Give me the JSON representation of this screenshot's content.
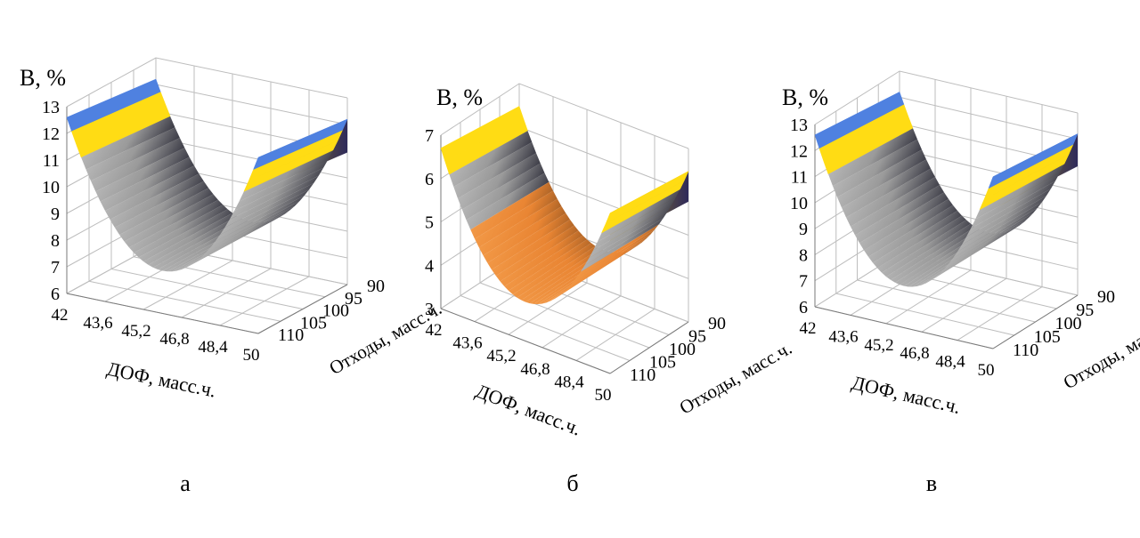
{
  "figure": {
    "panel_labels": [
      "а",
      "б",
      "в"
    ]
  },
  "colors": {
    "blue": "#4f81e0",
    "yellow": "#ffdc14",
    "gray": "#b4b4b4",
    "orange": "#f59a46",
    "gold": "#d4b020",
    "grid": "#bdbdbd"
  },
  "chart_data": [
    {
      "type": "surface",
      "panel": "а",
      "zlabel": "В, %",
      "xlabel": "ДОФ, масс.ч.",
      "ylabel": "Отходы, масс.ч.",
      "x_ticks": [
        "42",
        "43,6",
        "45,2",
        "46,8",
        "48,4",
        "50"
      ],
      "y_ticks": [
        "90",
        "95",
        "100",
        "105",
        "110"
      ],
      "z_ticks": [
        "6",
        "7",
        "8",
        "9",
        "10",
        "11",
        "12",
        "13"
      ],
      "zlim": [
        6,
        13
      ],
      "z_min": 7.6,
      "z_max": 12.6,
      "bands": [
        {
          "from": 6,
          "to": 11,
          "color": "gray"
        },
        {
          "from": 11,
          "to": 12,
          "color": "yellow"
        },
        {
          "from": 12,
          "to": 13,
          "color": "blue"
        }
      ]
    },
    {
      "type": "surface",
      "panel": "б",
      "zlabel": "В, %",
      "xlabel": "ДОФ, масс.ч.",
      "ylabel": "Отходы, масс.ч.",
      "x_ticks": [
        "42",
        "43,6",
        "45,2",
        "46,8",
        "48,4",
        "50"
      ],
      "y_ticks": [
        "90",
        "95",
        "100",
        "105",
        "110"
      ],
      "z_ticks": [
        "3",
        "4",
        "5",
        "6",
        "7"
      ],
      "zlim": [
        3,
        7
      ],
      "z_min": 3.9,
      "z_max": 6.7,
      "bands": [
        {
          "from": 3,
          "to": 5,
          "color": "orange"
        },
        {
          "from": 5,
          "to": 6,
          "color": "gray"
        },
        {
          "from": 6,
          "to": 7,
          "color": "yellow"
        }
      ]
    },
    {
      "type": "surface",
      "panel": "в",
      "zlabel": "В, %",
      "xlabel": "ДОФ, масс.ч.",
      "ylabel": "Отходы, масс.ч.",
      "x_ticks": [
        "42",
        "43,6",
        "45,2",
        "46,8",
        "48,4",
        "50"
      ],
      "y_ticks": [
        "90",
        "95",
        "100",
        "105",
        "110"
      ],
      "z_ticks": [
        "6",
        "7",
        "8",
        "9",
        "10",
        "11",
        "12",
        "13"
      ],
      "zlim": [
        6,
        13
      ],
      "z_min": 7.6,
      "z_max": 12.6,
      "bands": [
        {
          "from": 6,
          "to": 11,
          "color": "gray"
        },
        {
          "from": 11,
          "to": 12,
          "color": "yellow"
        },
        {
          "from": 12,
          "to": 13,
          "color": "blue"
        }
      ]
    }
  ]
}
